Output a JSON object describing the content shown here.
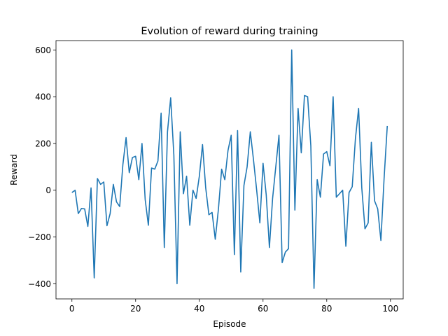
{
  "chart_data": {
    "type": "line",
    "title": "Evolution of reward during training",
    "xlabel": "Episode",
    "ylabel": "Reward",
    "xlim": [
      -5,
      104
    ],
    "ylim": [
      -465,
      640
    ],
    "xticks": [
      0,
      20,
      40,
      60,
      80,
      100
    ],
    "yticks": [
      -400,
      -200,
      0,
      200,
      400,
      600
    ],
    "grid": false,
    "series": [
      {
        "color": "#1f77b4",
        "x": [
          0,
          1,
          2,
          3,
          4,
          5,
          6,
          7,
          8,
          9,
          10,
          11,
          12,
          13,
          14,
          15,
          16,
          17,
          18,
          19,
          20,
          21,
          22,
          23,
          24,
          25,
          26,
          27,
          28,
          29,
          30,
          31,
          32,
          33,
          34,
          35,
          36,
          37,
          38,
          39,
          40,
          41,
          42,
          43,
          44,
          45,
          46,
          47,
          48,
          49,
          50,
          51,
          52,
          53,
          54,
          55,
          56,
          57,
          58,
          59,
          60,
          61,
          62,
          63,
          64,
          65,
          66,
          67,
          68,
          69,
          70,
          71,
          72,
          73,
          74,
          75,
          76,
          77,
          78,
          79,
          80,
          81,
          82,
          83,
          84,
          85,
          86,
          87,
          88,
          89,
          90,
          91,
          92,
          93,
          94,
          95,
          96,
          97,
          98,
          99
        ],
        "y": [
          -10,
          0,
          -100,
          -78,
          -80,
          -155,
          10,
          -375,
          50,
          25,
          35,
          -152,
          -100,
          25,
          -50,
          -70,
          110,
          225,
          75,
          140,
          145,
          45,
          200,
          -40,
          -150,
          95,
          90,
          125,
          330,
          -245,
          250,
          395,
          150,
          -400,
          250,
          -15,
          60,
          -150,
          0,
          -35,
          60,
          195,
          10,
          -105,
          -95,
          -210,
          -80,
          90,
          45,
          170,
          235,
          -275,
          255,
          -350,
          20,
          100,
          250,
          130,
          0,
          -140,
          115,
          -20,
          -245,
          -35,
          100,
          235,
          -310,
          -265,
          -250,
          600,
          -85,
          350,
          160,
          405,
          400,
          190,
          -420,
          45,
          -30,
          155,
          165,
          105,
          400,
          -30,
          -15,
          0,
          -240,
          -10,
          15,
          220,
          350,
          10,
          -165,
          -140,
          205,
          -45,
          -80,
          -215,
          50,
          275
        ]
      }
    ]
  }
}
